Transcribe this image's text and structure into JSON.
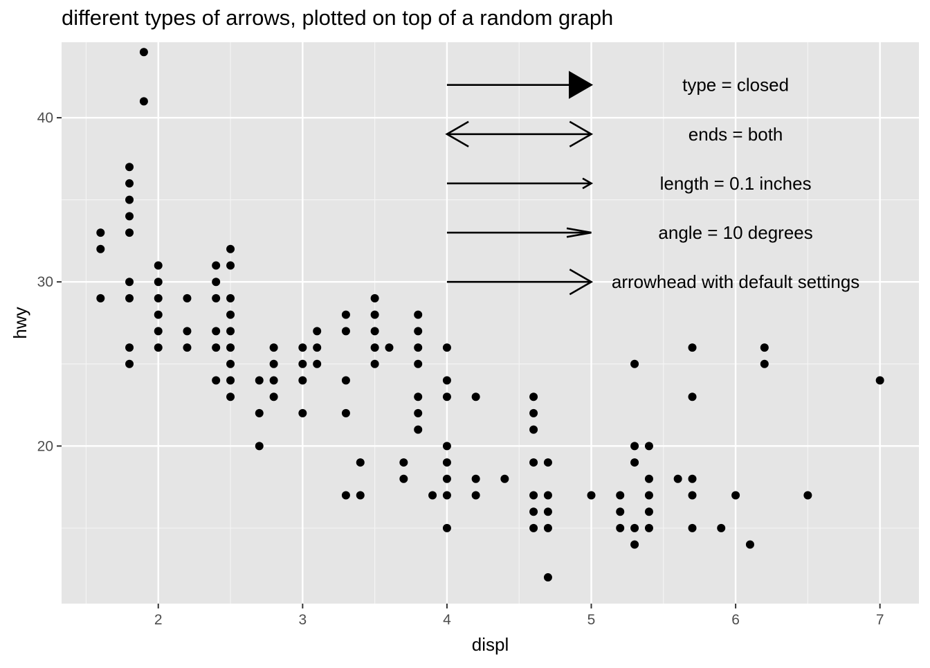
{
  "chart_data": {
    "type": "scatter",
    "title": "different types of arrows, plotted on top of a random graph",
    "xlabel": "displ",
    "ylabel": "hwy",
    "xlim": [
      1.33,
      7.27
    ],
    "ylim": [
      10.4,
      44.6
    ],
    "x_ticks": [
      2,
      3,
      4,
      5,
      6,
      7
    ],
    "y_ticks": [
      20,
      30,
      40
    ],
    "grid": true,
    "background": "#e5e5e5",
    "point_color": "#000000",
    "points": [
      [
        1.6,
        33
      ],
      [
        1.6,
        32
      ],
      [
        1.6,
        29
      ],
      [
        1.8,
        37
      ],
      [
        1.8,
        36
      ],
      [
        1.8,
        35
      ],
      [
        1.8,
        34
      ],
      [
        1.8,
        33
      ],
      [
        1.8,
        30
      ],
      [
        1.8,
        29
      ],
      [
        1.8,
        26
      ],
      [
        1.8,
        25
      ],
      [
        1.9,
        44
      ],
      [
        1.9,
        41
      ],
      [
        2.0,
        31
      ],
      [
        2.0,
        30
      ],
      [
        2.0,
        29
      ],
      [
        2.0,
        28
      ],
      [
        2.0,
        27
      ],
      [
        2.0,
        26
      ],
      [
        2.2,
        29
      ],
      [
        2.2,
        27
      ],
      [
        2.2,
        26
      ],
      [
        2.4,
        31
      ],
      [
        2.4,
        30
      ],
      [
        2.4,
        29
      ],
      [
        2.4,
        27
      ],
      [
        2.4,
        26
      ],
      [
        2.4,
        24
      ],
      [
        2.5,
        32
      ],
      [
        2.5,
        31
      ],
      [
        2.5,
        29
      ],
      [
        2.5,
        28
      ],
      [
        2.5,
        27
      ],
      [
        2.5,
        26
      ],
      [
        2.5,
        25
      ],
      [
        2.5,
        24
      ],
      [
        2.5,
        23
      ],
      [
        2.7,
        24
      ],
      [
        2.7,
        22
      ],
      [
        2.7,
        20
      ],
      [
        2.8,
        26
      ],
      [
        2.8,
        25
      ],
      [
        2.8,
        24
      ],
      [
        2.8,
        23
      ],
      [
        3.0,
        26
      ],
      [
        3.0,
        25
      ],
      [
        3.0,
        24
      ],
      [
        3.0,
        22
      ],
      [
        3.1,
        27
      ],
      [
        3.1,
        26
      ],
      [
        3.1,
        25
      ],
      [
        3.3,
        28
      ],
      [
        3.3,
        27
      ],
      [
        3.3,
        24
      ],
      [
        3.3,
        22
      ],
      [
        3.3,
        17
      ],
      [
        3.4,
        19
      ],
      [
        3.4,
        17
      ],
      [
        3.5,
        29
      ],
      [
        3.5,
        28
      ],
      [
        3.5,
        27
      ],
      [
        3.5,
        26
      ],
      [
        3.5,
        25
      ],
      [
        3.6,
        26
      ],
      [
        3.7,
        19
      ],
      [
        3.7,
        18
      ],
      [
        3.8,
        28
      ],
      [
        3.8,
        27
      ],
      [
        3.8,
        26
      ],
      [
        3.8,
        25
      ],
      [
        3.8,
        23
      ],
      [
        3.8,
        22
      ],
      [
        3.8,
        21
      ],
      [
        3.9,
        17
      ],
      [
        4.0,
        26
      ],
      [
        4.0,
        24
      ],
      [
        4.0,
        23
      ],
      [
        4.0,
        20
      ],
      [
        4.0,
        19
      ],
      [
        4.0,
        18
      ],
      [
        4.0,
        17
      ],
      [
        4.0,
        15
      ],
      [
        4.2,
        23
      ],
      [
        4.2,
        18
      ],
      [
        4.2,
        17
      ],
      [
        4.4,
        18
      ],
      [
        4.6,
        23
      ],
      [
        4.6,
        22
      ],
      [
        4.6,
        21
      ],
      [
        4.6,
        19
      ],
      [
        4.6,
        17
      ],
      [
        4.6,
        16
      ],
      [
        4.6,
        15
      ],
      [
        4.7,
        19
      ],
      [
        4.7,
        17
      ],
      [
        4.7,
        16
      ],
      [
        4.7,
        15
      ],
      [
        4.7,
        12
      ],
      [
        5.0,
        17
      ],
      [
        5.2,
        17
      ],
      [
        5.2,
        16
      ],
      [
        5.2,
        15
      ],
      [
        5.3,
        25
      ],
      [
        5.3,
        20
      ],
      [
        5.3,
        19
      ],
      [
        5.3,
        15
      ],
      [
        5.3,
        14
      ],
      [
        5.4,
        20
      ],
      [
        5.4,
        18
      ],
      [
        5.4,
        17
      ],
      [
        5.4,
        16
      ],
      [
        5.4,
        15
      ],
      [
        5.6,
        18
      ],
      [
        5.7,
        26
      ],
      [
        5.7,
        23
      ],
      [
        5.7,
        18
      ],
      [
        5.7,
        17
      ],
      [
        5.7,
        15
      ],
      [
        5.9,
        15
      ],
      [
        6.0,
        17
      ],
      [
        6.1,
        14
      ],
      [
        6.2,
        26
      ],
      [
        6.2,
        25
      ],
      [
        6.5,
        17
      ],
      [
        7.0,
        24
      ]
    ],
    "annotations": [
      {
        "label": "type = closed",
        "x": 6,
        "y": 42,
        "arrow": {
          "x0": 4,
          "x1": 5,
          "style": "closed",
          "ends": "last",
          "length_in": 0.25,
          "angle_deg": 30
        }
      },
      {
        "label": "ends = both",
        "x": 6,
        "y": 39,
        "arrow": {
          "x0": 4,
          "x1": 5,
          "style": "open",
          "ends": "both",
          "length_in": 0.25,
          "angle_deg": 30
        }
      },
      {
        "label": "length = 0.1 inches",
        "x": 6,
        "y": 36,
        "arrow": {
          "x0": 4,
          "x1": 5,
          "style": "open",
          "ends": "last",
          "length_in": 0.1,
          "angle_deg": 30
        }
      },
      {
        "label": "angle = 10 degrees",
        "x": 6,
        "y": 33,
        "arrow": {
          "x0": 4,
          "x1": 5,
          "style": "open",
          "ends": "last",
          "length_in": 0.25,
          "angle_deg": 10
        }
      },
      {
        "label": "arrowhead with default settings",
        "x": 6,
        "y": 30,
        "arrow": {
          "x0": 4,
          "x1": 5,
          "style": "open",
          "ends": "last",
          "length_in": 0.25,
          "angle_deg": 30
        }
      }
    ]
  }
}
